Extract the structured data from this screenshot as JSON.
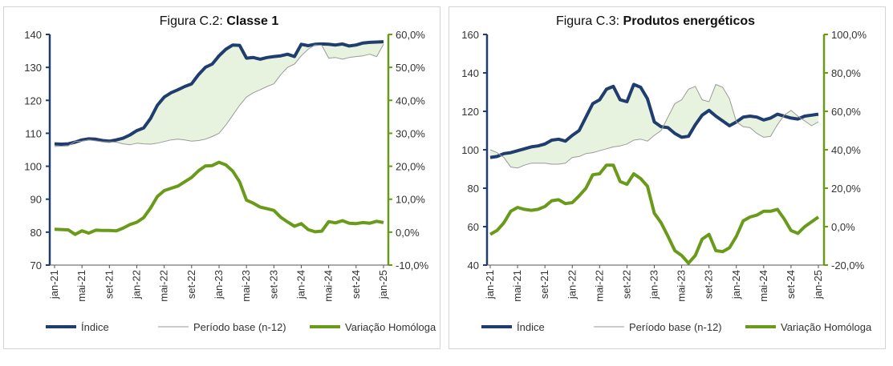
{
  "chart_data": [
    {
      "type": "line",
      "title_prefix": "Figura C.2: ",
      "title_main": "Classe 1",
      "x": [
        "jan-21",
        "fev-21",
        "mar-21",
        "abr-21",
        "mai-21",
        "jun-21",
        "jul-21",
        "ago-21",
        "set-21",
        "out-21",
        "nov-21",
        "dez-21",
        "jan-22",
        "fev-22",
        "mar-22",
        "abr-22",
        "mai-22",
        "jun-22",
        "jul-22",
        "ago-22",
        "set-22",
        "out-22",
        "nov-22",
        "dez-22",
        "jan-23",
        "fev-23",
        "mar-23",
        "abr-23",
        "mai-23",
        "jun-23",
        "jul-23",
        "ago-23",
        "set-23",
        "out-23",
        "nov-23",
        "dez-23",
        "jan-24",
        "fev-24",
        "mar-24",
        "abr-24",
        "mai-24",
        "jun-24",
        "jul-24",
        "ago-24",
        "set-24",
        "out-24",
        "nov-24",
        "dez-24",
        "jan-25"
      ],
      "xticks": [
        "jan-21",
        "mai-21",
        "set-21",
        "jan-22",
        "mai-22",
        "set-22",
        "jan-23",
        "mai-23",
        "set-23",
        "jan-24",
        "mai-24",
        "set-24",
        "jan-25"
      ],
      "ylim": [
        70,
        140
      ],
      "yticks": [
        "70",
        "80",
        "90",
        "100",
        "110",
        "120",
        "130",
        "140"
      ],
      "y2lim": [
        -10,
        60
      ],
      "y2ticks": [
        "-10,0%",
        "0,0%",
        "10,0%",
        "20,0%",
        "30,0%",
        "40,0%",
        "50,0%",
        "60,0%"
      ],
      "series": [
        {
          "name": "Índice",
          "axis": "left",
          "color": "#1f3d6e",
          "values": [
            106.8,
            106.7,
            106.8,
            107.3,
            108.0,
            108.3,
            108.2,
            107.8,
            107.6,
            108.0,
            108.5,
            109.5,
            110.8,
            111.6,
            114.5,
            118.5,
            121.0,
            122.3,
            123.2,
            124.2,
            125.0,
            127.8,
            130.0,
            131.0,
            133.5,
            135.5,
            136.8,
            136.7,
            132.8,
            133.0,
            132.5,
            133.0,
            133.3,
            133.5,
            134.0,
            133.3,
            137.0,
            136.6,
            137.0,
            137.1,
            137.0,
            136.8,
            137.1,
            136.5,
            136.8,
            137.4,
            137.6,
            137.7,
            137.8
          ]
        },
        {
          "name": "Período base (n-12)",
          "axis": "left",
          "color": "#9a9a9a",
          "values": [
            106.0,
            106.1,
            106.2,
            107.5,
            107.6,
            108.0,
            107.7,
            107.4,
            107.4,
            107.3,
            106.8,
            106.5,
            107.0,
            106.8,
            106.7,
            107.0,
            107.5,
            108.0,
            108.2,
            108.0,
            107.6,
            107.8,
            108.2,
            109.0,
            110.0,
            112.5,
            115.5,
            118.5,
            121.0,
            122.3,
            123.2,
            124.2,
            125.0,
            127.8,
            130.0,
            131.0,
            133.5,
            135.5,
            136.8,
            136.7,
            132.8,
            133.0,
            132.5,
            133.0,
            133.3,
            133.5,
            134.0,
            133.3,
            137.0
          ]
        },
        {
          "name": "Variação Homóloga",
          "axis": "right",
          "color": "#6a9a1a",
          "values": [
            0.9,
            0.8,
            0.7,
            -0.7,
            0.4,
            -0.3,
            0.6,
            0.5,
            0.5,
            0.4,
            1.2,
            2.3,
            3.0,
            4.4,
            7.3,
            10.8,
            12.6,
            13.3,
            14.0,
            15.3,
            16.6,
            18.6,
            20.1,
            20.2,
            21.2,
            20.4,
            18.5,
            15.3,
            9.7,
            8.8,
            7.6,
            7.1,
            6.6,
            4.5,
            3.1,
            1.8,
            2.6,
            0.8,
            0.1,
            0.3,
            3.2,
            2.8,
            3.5,
            2.7,
            2.6,
            2.9,
            2.7,
            3.3,
            2.9
          ]
        }
      ]
    },
    {
      "type": "line",
      "title_prefix": "Figura C.3: ",
      "title_main": "Produtos energéticos",
      "x": [
        "jan-21",
        "fev-21",
        "mar-21",
        "abr-21",
        "mai-21",
        "jun-21",
        "jul-21",
        "ago-21",
        "set-21",
        "out-21",
        "nov-21",
        "dez-21",
        "jan-22",
        "fev-22",
        "mar-22",
        "abr-22",
        "mai-22",
        "jun-22",
        "jul-22",
        "ago-22",
        "set-22",
        "out-22",
        "nov-22",
        "dez-22",
        "jan-23",
        "fev-23",
        "mar-23",
        "abr-23",
        "mai-23",
        "jun-23",
        "jul-23",
        "ago-23",
        "set-23",
        "out-23",
        "nov-23",
        "dez-23",
        "jan-24",
        "fev-24",
        "mar-24",
        "abr-24",
        "mai-24",
        "jun-24",
        "jul-24",
        "ago-24",
        "set-24",
        "out-24",
        "nov-24",
        "dez-24",
        "jan-25"
      ],
      "xticks": [
        "jan-21",
        "mai-21",
        "set-21",
        "jan-22",
        "mai-22",
        "set-22",
        "jan-23",
        "mai-23",
        "set-23",
        "jan-24",
        "mai-24",
        "set-24",
        "jan-25"
      ],
      "ylim": [
        40,
        160
      ],
      "yticks": [
        "40",
        "60",
        "80",
        "100",
        "120",
        "140",
        "160"
      ],
      "y2lim": [
        -20,
        100
      ],
      "y2ticks": [
        "-20,0%",
        "0,0%",
        "20,0%",
        "40,0%",
        "60,0%",
        "80,0%",
        "100,0%"
      ],
      "series": [
        {
          "name": "Índice",
          "axis": "left",
          "color": "#1f3d6e",
          "values": [
            96.0,
            96.5,
            98.0,
            98.5,
            99.5,
            100.5,
            101.5,
            102.0,
            103.0,
            105.0,
            105.5,
            104.5,
            107.5,
            110.0,
            117.0,
            124.0,
            126.0,
            131.5,
            133.0,
            126.0,
            125.0,
            134.0,
            132.5,
            126.5,
            114.5,
            112.0,
            111.5,
            108.5,
            106.5,
            107.0,
            113.0,
            118.0,
            120.5,
            117.5,
            115.0,
            112.5,
            114.5,
            117.0,
            117.5,
            117.0,
            115.5,
            116.5,
            118.5,
            117.5,
            116.5,
            116.0,
            117.5,
            118.0,
            118.5
          ]
        },
        {
          "name": "Período base (n-12)",
          "axis": "left",
          "color": "#9a9a9a",
          "values": [
            100.0,
            98.5,
            96.0,
            91.0,
            90.5,
            92.0,
            93.0,
            93.0,
            93.0,
            92.5,
            92.5,
            93.0,
            96.0,
            96.5,
            98.0,
            98.5,
            99.5,
            100.5,
            101.5,
            102.0,
            103.0,
            105.0,
            105.5,
            104.5,
            107.5,
            110.0,
            117.0,
            124.0,
            126.0,
            131.5,
            133.0,
            126.0,
            125.0,
            134.0,
            132.5,
            126.5,
            114.5,
            112.0,
            111.5,
            108.5,
            106.5,
            107.0,
            113.0,
            118.0,
            120.5,
            117.5,
            115.0,
            112.5,
            114.5
          ]
        },
        {
          "name": "Variação Homóloga",
          "axis": "right",
          "color": "#6a9a1a",
          "values": [
            -4.0,
            -2.0,
            2.0,
            8.0,
            10.0,
            9.0,
            8.5,
            9.0,
            10.5,
            13.5,
            14.0,
            12.0,
            12.5,
            16.0,
            20.0,
            27.0,
            27.5,
            32.0,
            32.0,
            23.5,
            22.0,
            27.5,
            25.0,
            21.0,
            7.0,
            2.0,
            -5.0,
            -12.5,
            -15.0,
            -19.0,
            -15.0,
            -6.5,
            -4.0,
            -12.5,
            -13.0,
            -11.0,
            -5.0,
            3.0,
            5.0,
            6.0,
            8.0,
            8.0,
            9.0,
            4.0,
            -2.0,
            -3.5,
            0.0,
            2.5,
            5.0
          ]
        }
      ]
    }
  ]
}
